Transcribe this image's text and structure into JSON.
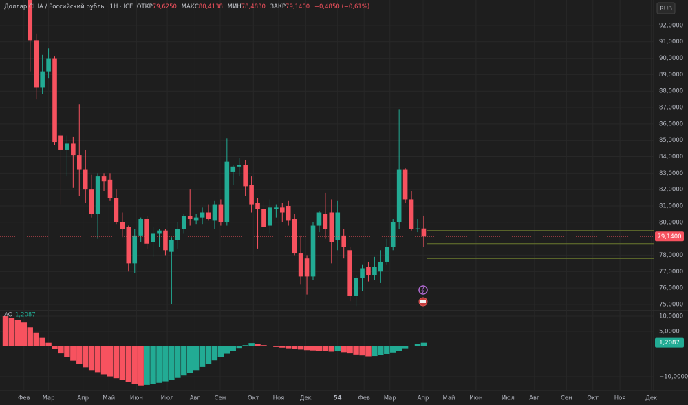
{
  "chart_data": [
    {
      "type": "candlestick",
      "title": "Доллар США / Российский рубль · 1Н · ICE",
      "ohlc_labels": [
        {
          "label": "ОТКР",
          "value": "79,6250"
        },
        {
          "label": "МАКС",
          "value": "80,4138"
        },
        {
          "label": "МИН",
          "value": "78,4830"
        },
        {
          "label": "ЗАКР",
          "value": "79,1400"
        }
      ],
      "change": "−0,4850 (−0,61%)",
      "currency": "RUB",
      "x": [
        4,
        5,
        6,
        7,
        8,
        9,
        10,
        11,
        12,
        13,
        14,
        15,
        16,
        17,
        18,
        19,
        20,
        21,
        22,
        23,
        24,
        25,
        26,
        27,
        28,
        29,
        30,
        31,
        32,
        33,
        34,
        35,
        36,
        37,
        38,
        39,
        40,
        41,
        42,
        43,
        44,
        45,
        46,
        47,
        48,
        49,
        50,
        51,
        52,
        53,
        54,
        55,
        56,
        57,
        58,
        59,
        60,
        61,
        62,
        63,
        64,
        65,
        66,
        67,
        68
      ],
      "open": [
        93.6,
        91.1,
        88.2,
        89.2,
        90.0,
        85.3,
        84.4,
        84.8,
        84.1,
        83.2,
        82.0,
        80.5,
        82.8,
        82.6,
        81.5,
        80.0,
        79.7,
        77.5,
        79.2,
        80.2,
        78.8,
        79.3,
        79.5,
        78.2,
        78.9,
        79.6,
        80.4,
        80.1,
        80.3,
        80.6,
        80.1,
        81.1,
        80.0,
        83.1,
        83.4,
        83.5,
        82.3,
        81.2,
        80.8,
        79.8,
        80.8,
        80.9,
        81.0,
        80.2,
        78.1,
        77.8,
        76.7,
        79.8,
        80.5,
        80.6,
        78.9,
        79.2,
        78.3,
        75.5,
        76.6,
        77.3,
        76.8,
        77.0,
        77.6,
        78.5,
        80.0,
        83.2,
        81.4,
        79.6,
        79.625
      ],
      "high": [
        94.0,
        91.5,
        90.2,
        90.6,
        90.1,
        85.6,
        85.3,
        85.2,
        87.2,
        84.4,
        82.9,
        83.0,
        83.0,
        83.0,
        82.0,
        80.6,
        79.8,
        79.6,
        80.3,
        80.4,
        79.7,
        79.6,
        79.6,
        79.1,
        80.0,
        80.5,
        82.0,
        80.5,
        80.9,
        81.1,
        81.3,
        81.4,
        85.1,
        83.5,
        83.9,
        83.8,
        82.8,
        81.5,
        81.3,
        81.4,
        81.1,
        81.2,
        81.3,
        80.5,
        79.2,
        78.0,
        80.0,
        80.7,
        81.8,
        81.4,
        81.3,
        79.6,
        78.5,
        76.8,
        77.4,
        77.6,
        77.9,
        78.3,
        79.0,
        80.2,
        86.9,
        83.3,
        81.9,
        80.2,
        80.4138
      ],
      "low": [
        89.2,
        87.5,
        87.8,
        88.8,
        84.7,
        81.1,
        82.8,
        82.1,
        81.6,
        81.2,
        80.3,
        79.0,
        81.9,
        81.3,
        79.9,
        79.1,
        77.0,
        76.9,
        78.8,
        78.4,
        77.9,
        78.5,
        78.0,
        75.0,
        78.4,
        79.3,
        79.8,
        79.9,
        79.9,
        80.1,
        79.6,
        79.8,
        79.8,
        82.3,
        82.8,
        81.6,
        80.6,
        78.4,
        79.4,
        79.3,
        80.3,
        80.0,
        79.8,
        78.0,
        76.2,
        75.6,
        76.5,
        79.4,
        79.0,
        77.5,
        78.3,
        77.8,
        75.2,
        74.9,
        75.8,
        76.4,
        76.5,
        76.3,
        77.4,
        78.3,
        79.6,
        81.2,
        79.5,
        79.4,
        78.483
      ],
      "close": [
        91.1,
        88.2,
        89.2,
        90.0,
        84.9,
        84.4,
        84.8,
        84.1,
        83.2,
        82.0,
        80.5,
        82.8,
        82.5,
        81.5,
        80.0,
        79.6,
        77.5,
        79.2,
        80.2,
        78.7,
        79.3,
        79.5,
        78.3,
        78.9,
        79.6,
        80.4,
        80.2,
        80.3,
        80.6,
        80.2,
        81.1,
        80.0,
        83.7,
        83.4,
        83.5,
        82.2,
        81.1,
        80.8,
        79.7,
        80.9,
        80.9,
        80.6,
        80.1,
        78.1,
        76.7,
        76.7,
        79.8,
        80.6,
        79.6,
        78.8,
        80.6,
        78.5,
        75.5,
        76.6,
        77.2,
        76.8,
        77.3,
        77.6,
        78.5,
        80.0,
        83.2,
        81.4,
        79.6,
        79.63,
        79.14
      ],
      "last_label": "79,1400",
      "levels": [
        79.5,
        78.7,
        77.8
      ],
      "level_color": "#6b7a2e",
      "up_color": "#22ab94",
      "down_color": "#f7525f",
      "xlim": [
        -0.895,
        105.37
      ],
      "xticks": [
        {
          "value": 3.0,
          "label": "Фев"
        },
        {
          "value": 7.0,
          "label": "Мар"
        },
        {
          "value": 12.6,
          "label": "Апр"
        },
        {
          "value": 16.8,
          "label": "Май"
        },
        {
          "value": 21.3,
          "label": "Июн"
        },
        {
          "value": 26.3,
          "label": "Июл"
        },
        {
          "value": 30.8,
          "label": "Авг"
        },
        {
          "value": 34.9,
          "label": "Сен"
        },
        {
          "value": 40.3,
          "label": "Окт"
        },
        {
          "value": 44.4,
          "label": "Ноя"
        },
        {
          "value": 48.8,
          "label": "Дек"
        },
        54.0,
        {
          "value": 58.3,
          "label": "Фев"
        },
        {
          "value": 62.5,
          "label": "Мар"
        },
        {
          "value": 67.9,
          "label": "Апр"
        },
        {
          "value": 72.1,
          "label": "Май"
        },
        {
          "value": 76.5,
          "label": "Июн"
        },
        {
          "value": 81.7,
          "label": "Июл"
        },
        {
          "value": 86.0,
          "label": "Авг"
        },
        {
          "value": 91.2,
          "label": "Сен"
        },
        {
          "value": 95.5,
          "label": "Окт"
        },
        {
          "value": 99.9,
          "label": "Ноя"
        },
        {
          "value": 105.0,
          "label": "Дек"
        }
      ],
      "ylim": [
        74.66,
        93.55
      ],
      "yticks": [
        {
          "value": 75,
          "label": "75,0000"
        },
        {
          "value": 76,
          "label": "76,0000"
        },
        {
          "value": 77,
          "label": "77,0000"
        },
        {
          "value": 78,
          "label": "78,0000"
        },
        {
          "value": 80,
          "label": "80,0000"
        },
        {
          "value": 81,
          "label": "81,0000"
        },
        {
          "value": 82,
          "label": "82,0000"
        },
        {
          "value": 83,
          "label": "83,0000"
        },
        {
          "value": 84,
          "label": "84,0000"
        },
        {
          "value": 85,
          "label": "85,0000"
        },
        {
          "value": 86,
          "label": "86,0000"
        },
        {
          "value": 87,
          "label": "87,0000"
        },
        {
          "value": 88,
          "label": "88,0000"
        },
        {
          "value": 89,
          "label": "89,0000"
        },
        {
          "value": 90,
          "label": "90,0000"
        },
        {
          "value": 91,
          "label": "91,0000"
        },
        {
          "value": 92,
          "label": "92,0000"
        }
      ]
    },
    {
      "type": "bar",
      "title": "AO",
      "x": [
        0,
        1,
        2,
        3,
        4,
        5,
        6,
        7,
        8,
        9,
        10,
        11,
        12,
        13,
        14,
        15,
        16,
        17,
        18,
        19,
        20,
        21,
        22,
        23,
        24,
        25,
        26,
        27,
        28,
        29,
        30,
        31,
        32,
        33,
        34,
        35,
        36,
        37,
        38,
        39,
        40,
        41,
        42,
        43,
        44,
        45,
        46,
        47,
        48,
        49,
        50,
        51,
        52,
        53,
        54,
        55,
        56,
        57,
        58,
        59,
        60,
        61,
        62,
        63,
        64,
        65,
        66,
        67,
        68
      ],
      "values": [
        10.0,
        9.5,
        8.8,
        7.9,
        6.3,
        4.6,
        2.8,
        1.2,
        -0.8,
        -2.3,
        -3.6,
        -4.7,
        -5.8,
        -6.9,
        -7.8,
        -8.5,
        -9.2,
        -9.9,
        -10.5,
        -11.1,
        -11.7,
        -12.3,
        -12.9,
        -12.7,
        -12.4,
        -12.0,
        -11.5,
        -11.0,
        -10.4,
        -9.6,
        -8.7,
        -7.8,
        -6.8,
        -5.8,
        -4.6,
        -3.5,
        -2.4,
        -1.4,
        -0.5,
        0.4,
        1.1,
        0.8,
        0.4,
        0.1,
        -0.2,
        -0.4,
        -0.6,
        -0.8,
        -1.0,
        -1.2,
        -1.3,
        -1.4,
        -1.5,
        -1.7,
        -1.6,
        -1.9,
        -2.3,
        -2.7,
        -3.0,
        -3.3,
        -3.2,
        -2.9,
        -2.5,
        -2.0,
        -1.4,
        -0.6,
        0.2,
        0.8,
        1.2087
      ],
      "value_label": "1,2087",
      "up_color": "#22ab94",
      "down_color": "#f7525f",
      "ylim": [
        -14.55,
        11.59
      ],
      "yticks": [
        {
          "value": 10,
          "label": "10,0000"
        },
        {
          "value": 5,
          "label": "5,0000"
        },
        {
          "value": -10,
          "label": "−10,0000"
        }
      ]
    }
  ]
}
